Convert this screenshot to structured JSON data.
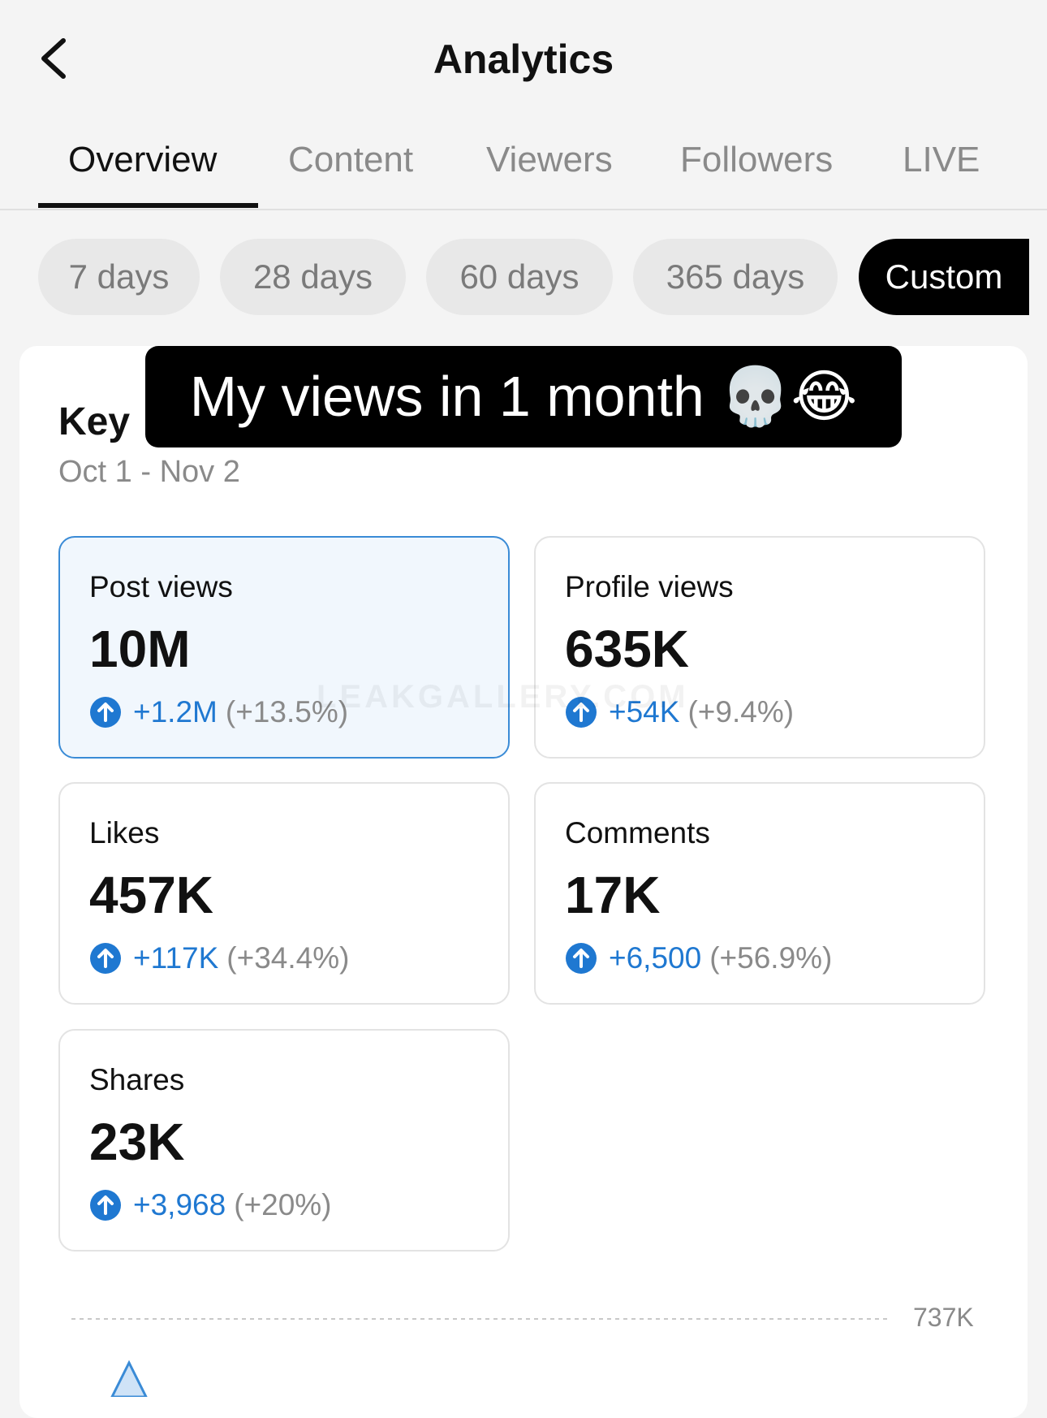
{
  "header": {
    "title": "Analytics"
  },
  "tabs": [
    "Overview",
    "Content",
    "Viewers",
    "Followers",
    "LIVE"
  ],
  "ranges": [
    "7 days",
    "28 days",
    "60 days",
    "365 days",
    "Custom"
  ],
  "caption": "My views in 1 month 💀😂",
  "section": {
    "title": "Key",
    "dates": "Oct 1 - Nov 2"
  },
  "watermark": "LEAKGALLERY.COM",
  "metrics": [
    {
      "label": "Post views",
      "value": "10M",
      "change": "+1.2M",
      "pct": "(+13.5%)"
    },
    {
      "label": "Profile views",
      "value": "635K",
      "change": "+54K",
      "pct": "(+9.4%)"
    },
    {
      "label": "Likes",
      "value": "457K",
      "change": "+117K",
      "pct": "(+34.4%)"
    },
    {
      "label": "Comments",
      "value": "17K",
      "change": "+6,500",
      "pct": "(+56.9%)"
    },
    {
      "label": "Shares",
      "value": "23K",
      "change": "+3,968",
      "pct": "(+20%)"
    }
  ],
  "chart": {
    "tick": "737K"
  }
}
